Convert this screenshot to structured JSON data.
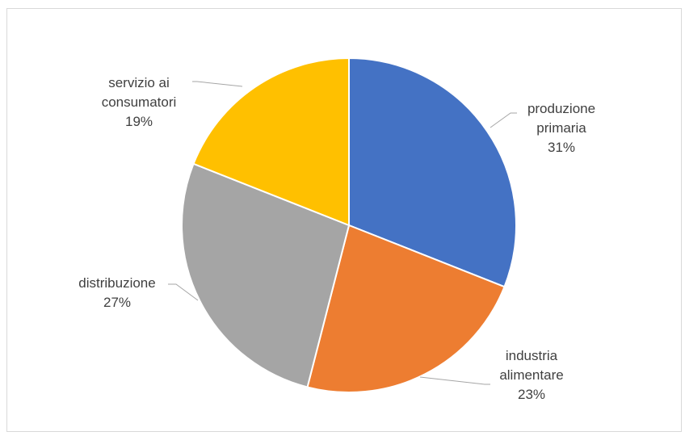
{
  "chart_data": {
    "type": "pie",
    "title": "",
    "slices": [
      {
        "label_lines": [
          "produzione",
          "primaria"
        ],
        "value": 31,
        "pct_label": "31%",
        "color": "#4472C4"
      },
      {
        "label_lines": [
          "industria",
          "alimentare"
        ],
        "value": 23,
        "pct_label": "23%",
        "color": "#ED7D31"
      },
      {
        "label_lines": [
          "distribuzione"
        ],
        "value": 27,
        "pct_label": "27%",
        "color": "#A5A5A5"
      },
      {
        "label_lines": [
          "servizio ai",
          "consumatori"
        ],
        "value": 19,
        "pct_label": "19%",
        "color": "#FFC000"
      }
    ],
    "start_angle": "12 o'clock",
    "direction": "clockwise",
    "legend": "none"
  }
}
